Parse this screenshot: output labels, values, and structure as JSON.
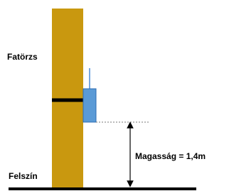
{
  "labels": {
    "trunk": "Fatörzs",
    "ground": "Felszín",
    "height": "Magasság = 1,4m"
  }
}
